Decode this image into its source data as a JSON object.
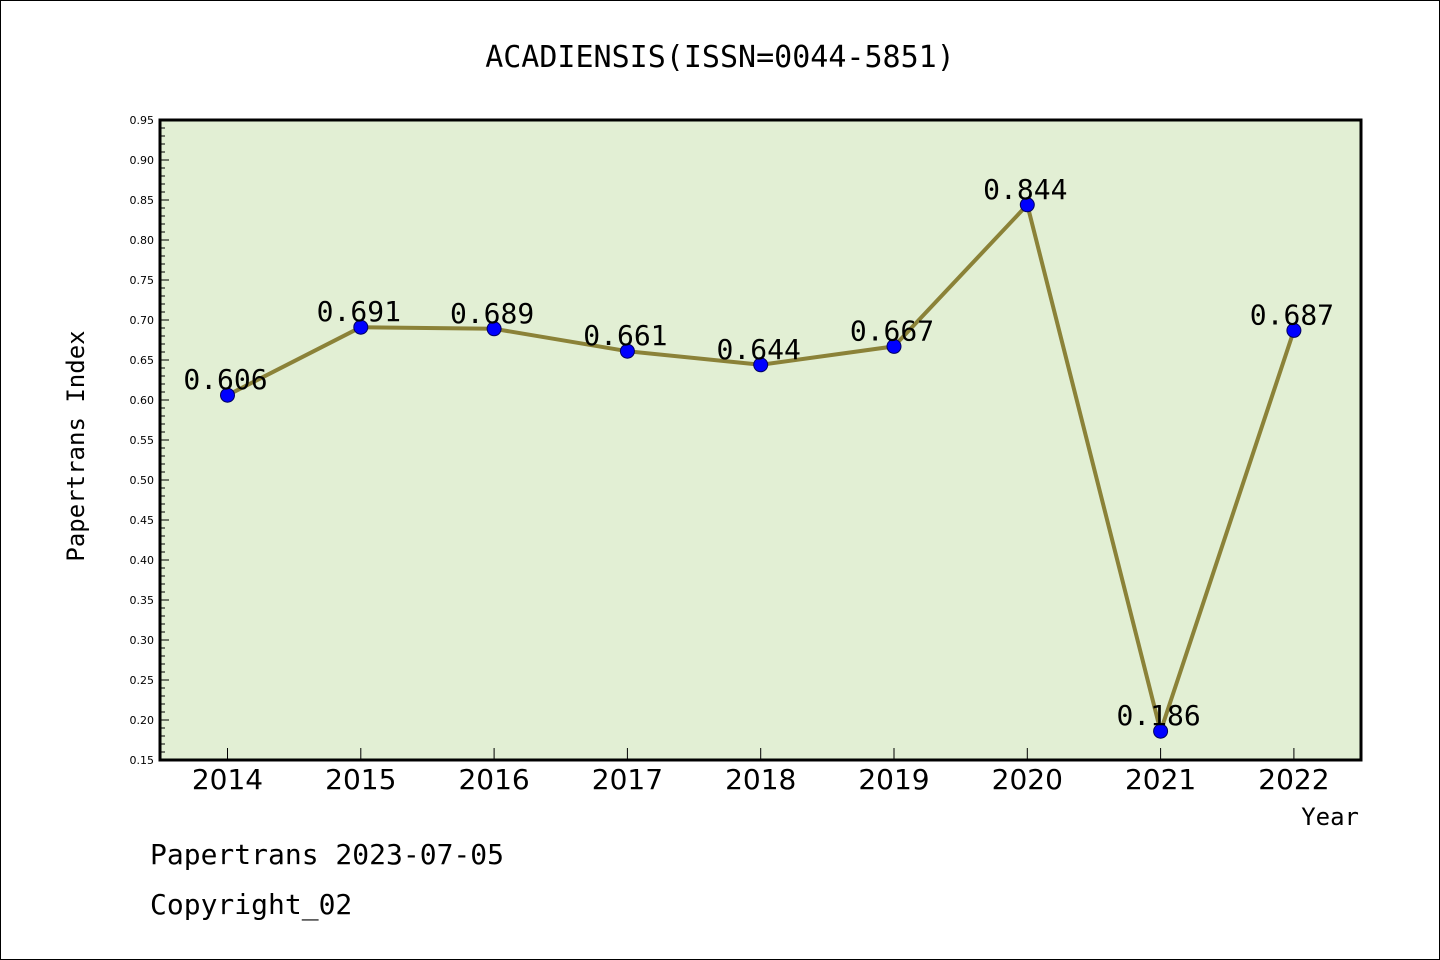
{
  "chart_data": {
    "type": "line",
    "title": "ACADIENSIS(ISSN=0044-5851)",
    "xlabel": "Year",
    "ylabel": "Papertrans Index",
    "categories": [
      "2014",
      "2015",
      "2016",
      "2017",
      "2018",
      "2019",
      "2020",
      "2021",
      "2022"
    ],
    "values": [
      0.606,
      0.691,
      0.689,
      0.661,
      0.644,
      0.667,
      0.844,
      0.186,
      0.687
    ],
    "value_labels": [
      "0.606",
      "0.691",
      "0.689",
      "0.661",
      "0.644",
      "0.667",
      "0.844",
      "0.186",
      "0.687"
    ],
    "ylim": [
      0.15,
      0.95
    ],
    "yticks": [
      "0.15",
      "0.20",
      "0.25",
      "0.30",
      "0.35",
      "0.40",
      "0.45",
      "0.50",
      "0.55",
      "0.60",
      "0.65",
      "0.70",
      "0.75",
      "0.80",
      "0.85",
      "0.90",
      "0.95"
    ],
    "grid": false,
    "colors": {
      "plot_background": "#e2efd4",
      "line": "#8b8238",
      "marker": "#0000ff"
    }
  },
  "footer": {
    "line1": "Papertrans 2023-07-05",
    "line2": "Copyright_02"
  }
}
